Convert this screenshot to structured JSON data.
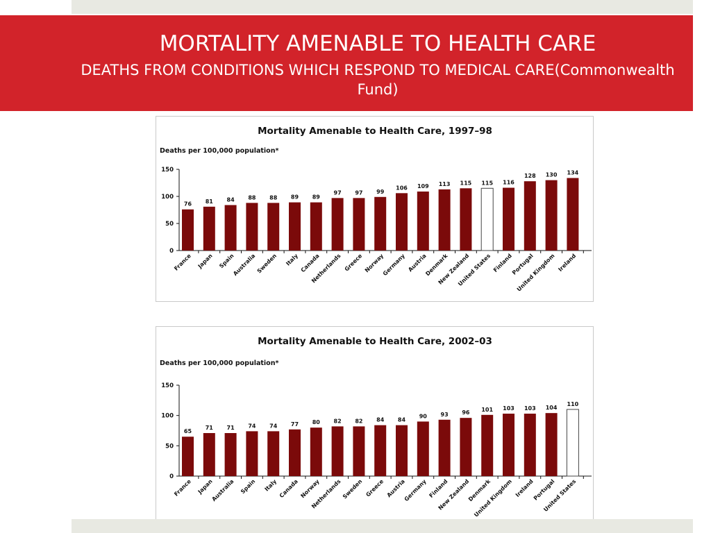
{
  "slide": {
    "title": "MORTALITY AMENABLE TO HEALTH CARE",
    "subtitle": "DEATHS FROM CONDITIONS WHICH RESPOND TO MEDICAL CARE(Commonwealth Fund)",
    "accent_color": "#d2232a",
    "band_color": "#e8e9e2"
  },
  "chart_data": [
    {
      "type": "bar",
      "title": "Mortality Amenable to Health Care, 1997–98",
      "ylabel": "Deaths per 100,000 population*",
      "ylim": [
        0,
        150
      ],
      "yticks": [
        0,
        50,
        100,
        150
      ],
      "grid": false,
      "bar_color": "#7b0a0a",
      "highlight_color": "#ffffff",
      "highlight": "United States",
      "categories": [
        "France",
        "Japan",
        "Spain",
        "Australia",
        "Sweden",
        "Italy",
        "Canada",
        "Netherlands",
        "Greece",
        "Norway",
        "Germany",
        "Austria",
        "Denmark",
        "New Zealand",
        "United States",
        "Finland",
        "Portugal",
        "United Kingdom",
        "Ireland"
      ],
      "values": [
        76,
        81,
        84,
        88,
        88,
        89,
        89,
        97,
        97,
        99,
        106,
        109,
        113,
        115,
        115,
        116,
        128,
        130,
        134
      ]
    },
    {
      "type": "bar",
      "title": "Mortality Amenable to Health Care, 2002–03",
      "ylabel": "Deaths per 100,000 population*",
      "ylim": [
        0,
        150
      ],
      "yticks": [
        0,
        50,
        100,
        150
      ],
      "grid": false,
      "bar_color": "#7b0a0a",
      "highlight_color": "#ffffff",
      "highlight": "United States",
      "categories": [
        "France",
        "Japan",
        "Australia",
        "Spain",
        "Italy",
        "Canada",
        "Norway",
        "Netherlands",
        "Sweden",
        "Greece",
        "Austria",
        "Germany",
        "Finland",
        "New Zealand",
        "Denmark",
        "United Kingdom",
        "Ireland",
        "Portugal",
        "United States"
      ],
      "values": [
        65,
        71,
        71,
        74,
        74,
        77,
        80,
        82,
        82,
        84,
        84,
        90,
        93,
        96,
        101,
        103,
        103,
        104,
        110
      ]
    }
  ]
}
